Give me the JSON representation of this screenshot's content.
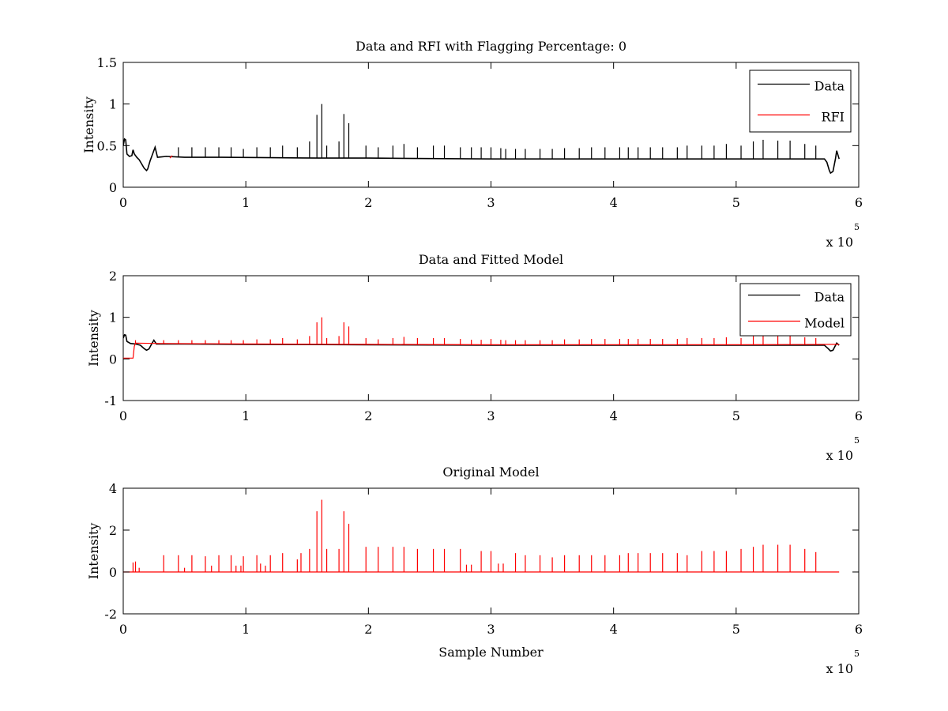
{
  "chart_data": [
    {
      "type": "line",
      "title": "Data and RFI with Flagging Percentage: 0",
      "xlabel": "",
      "ylabel": "Intensity",
      "xlim": [
        0,
        6
      ],
      "ylim": [
        0,
        1.5
      ],
      "xticks": [
        0,
        1,
        2,
        3,
        4,
        5,
        6
      ],
      "yticks": [
        0,
        0.5,
        1,
        1.5
      ],
      "x_multiplier_text": "x 10",
      "x_multiplier_exp": "5",
      "grid": false,
      "legend": {
        "placement": "top-right",
        "entries": [
          "Data",
          "RFI"
        ]
      },
      "series": [
        {
          "name": "Data",
          "color": "#000000",
          "values": [
            [
              0.0,
              0.5
            ],
            [
              0.01,
              0.58
            ],
            [
              0.02,
              0.57
            ],
            [
              0.03,
              0.4
            ],
            [
              0.05,
              0.37
            ],
            [
              0.07,
              0.38
            ],
            [
              0.08,
              0.45
            ],
            [
              0.09,
              0.4
            ],
            [
              0.11,
              0.36
            ],
            [
              0.13,
              0.33
            ],
            [
              0.15,
              0.28
            ],
            [
              0.17,
              0.23
            ],
            [
              0.19,
              0.2
            ],
            [
              0.2,
              0.22
            ],
            [
              0.22,
              0.32
            ],
            [
              0.24,
              0.4
            ],
            [
              0.26,
              0.48
            ],
            [
              0.28,
              0.36
            ],
            [
              0.35,
              0.37
            ],
            [
              0.5,
              0.36
            ],
            [
              0.8,
              0.36
            ],
            [
              1.2,
              0.355
            ],
            [
              1.6,
              0.35
            ],
            [
              2.0,
              0.35
            ],
            [
              2.5,
              0.345
            ],
            [
              3.0,
              0.34
            ],
            [
              3.5,
              0.34
            ],
            [
              4.0,
              0.34
            ],
            [
              4.5,
              0.34
            ],
            [
              5.0,
              0.34
            ],
            [
              5.5,
              0.34
            ],
            [
              5.72,
              0.34
            ],
            [
              5.74,
              0.3
            ],
            [
              5.76,
              0.2
            ],
            [
              5.77,
              0.17
            ],
            [
              5.79,
              0.19
            ],
            [
              5.81,
              0.34
            ],
            [
              5.82,
              0.44
            ],
            [
              5.84,
              0.34
            ]
          ],
          "spikes": [
            [
              0.26,
              0.48
            ],
            [
              0.45,
              0.48
            ],
            [
              0.56,
              0.48
            ],
            [
              0.67,
              0.48
            ],
            [
              0.78,
              0.48
            ],
            [
              0.88,
              0.48
            ],
            [
              0.98,
              0.46
            ],
            [
              1.09,
              0.48
            ],
            [
              1.2,
              0.48
            ],
            [
              1.3,
              0.5
            ],
            [
              1.42,
              0.48
            ],
            [
              1.52,
              0.55
            ],
            [
              1.58,
              0.87
            ],
            [
              1.62,
              1.0
            ],
            [
              1.66,
              0.5
            ],
            [
              1.76,
              0.55
            ],
            [
              1.8,
              0.88
            ],
            [
              1.84,
              0.77
            ],
            [
              1.98,
              0.5
            ],
            [
              2.08,
              0.48
            ],
            [
              2.2,
              0.5
            ],
            [
              2.29,
              0.52
            ],
            [
              2.4,
              0.48
            ],
            [
              2.53,
              0.5
            ],
            [
              2.62,
              0.5
            ],
            [
              2.75,
              0.48
            ],
            [
              2.84,
              0.48
            ],
            [
              2.92,
              0.48
            ],
            [
              3.0,
              0.48
            ],
            [
              3.08,
              0.47
            ],
            [
              3.12,
              0.46
            ],
            [
              3.2,
              0.46
            ],
            [
              3.28,
              0.46
            ],
            [
              3.4,
              0.46
            ],
            [
              3.5,
              0.46
            ],
            [
              3.6,
              0.47
            ],
            [
              3.72,
              0.47
            ],
            [
              3.82,
              0.48
            ],
            [
              3.93,
              0.48
            ],
            [
              4.05,
              0.48
            ],
            [
              4.12,
              0.48
            ],
            [
              4.2,
              0.48
            ],
            [
              4.3,
              0.48
            ],
            [
              4.4,
              0.48
            ],
            [
              4.52,
              0.48
            ],
            [
              4.6,
              0.5
            ],
            [
              4.72,
              0.5
            ],
            [
              4.82,
              0.5
            ],
            [
              4.92,
              0.52
            ],
            [
              5.04,
              0.5
            ],
            [
              5.14,
              0.55
            ],
            [
              5.22,
              0.57
            ],
            [
              5.34,
              0.56
            ],
            [
              5.44,
              0.56
            ],
            [
              5.56,
              0.52
            ],
            [
              5.65,
              0.5
            ]
          ]
        },
        {
          "name": "RFI",
          "color": "#ff0000",
          "values": [
            [
              0.38,
              0.35
            ],
            [
              0.4,
              0.38
            ]
          ]
        }
      ]
    },
    {
      "type": "line",
      "title": "Data and Fitted Model",
      "xlabel": "",
      "ylabel": "Intensity",
      "xlim": [
        0,
        6
      ],
      "ylim": [
        -1,
        2
      ],
      "xticks": [
        0,
        1,
        2,
        3,
        4,
        5,
        6
      ],
      "yticks": [
        -1,
        0,
        1,
        2
      ],
      "x_multiplier_text": "x 10",
      "x_multiplier_exp": "5",
      "grid": false,
      "legend": {
        "placement": "top-right",
        "entries": [
          "Data",
          "Model"
        ]
      },
      "series": [
        {
          "name": "Data",
          "color": "#000000",
          "values": [
            [
              0.0,
              0.5
            ],
            [
              0.01,
              0.58
            ],
            [
              0.02,
              0.57
            ],
            [
              0.03,
              0.42
            ],
            [
              0.06,
              0.37
            ],
            [
              0.1,
              0.36
            ],
            [
              0.14,
              0.33
            ],
            [
              0.17,
              0.25
            ],
            [
              0.19,
              0.21
            ],
            [
              0.21,
              0.24
            ],
            [
              0.23,
              0.35
            ],
            [
              0.25,
              0.45
            ],
            [
              0.27,
              0.36
            ],
            [
              0.5,
              0.36
            ],
            [
              1.0,
              0.35
            ],
            [
              2.0,
              0.34
            ],
            [
              3.0,
              0.33
            ],
            [
              4.0,
              0.33
            ],
            [
              5.0,
              0.33
            ],
            [
              5.72,
              0.33
            ],
            [
              5.75,
              0.25
            ],
            [
              5.77,
              0.19
            ],
            [
              5.79,
              0.21
            ],
            [
              5.82,
              0.38
            ],
            [
              5.84,
              0.33
            ]
          ]
        },
        {
          "name": "Model",
          "color": "#ff0000",
          "values": [
            [
              0.0,
              0.02
            ],
            [
              0.08,
              0.02
            ],
            [
              0.09,
              0.3
            ],
            [
              0.1,
              0.38
            ],
            [
              0.3,
              0.37
            ],
            [
              1.0,
              0.36
            ],
            [
              2.0,
              0.35
            ],
            [
              3.0,
              0.34
            ],
            [
              4.0,
              0.34
            ],
            [
              5.0,
              0.34
            ],
            [
              5.84,
              0.35
            ]
          ],
          "spikes": [
            [
              0.1,
              0.45
            ],
            [
              0.33,
              0.45
            ],
            [
              0.45,
              0.45
            ],
            [
              0.56,
              0.45
            ],
            [
              0.67,
              0.45
            ],
            [
              0.78,
              0.45
            ],
            [
              0.88,
              0.45
            ],
            [
              0.98,
              0.45
            ],
            [
              1.09,
              0.47
            ],
            [
              1.2,
              0.47
            ],
            [
              1.3,
              0.5
            ],
            [
              1.42,
              0.47
            ],
            [
              1.52,
              0.55
            ],
            [
              1.58,
              0.88
            ],
            [
              1.62,
              1.0
            ],
            [
              1.66,
              0.5
            ],
            [
              1.76,
              0.55
            ],
            [
              1.8,
              0.88
            ],
            [
              1.84,
              0.78
            ],
            [
              1.98,
              0.5
            ],
            [
              2.08,
              0.47
            ],
            [
              2.2,
              0.5
            ],
            [
              2.29,
              0.53
            ],
            [
              2.4,
              0.5
            ],
            [
              2.53,
              0.5
            ],
            [
              2.62,
              0.5
            ],
            [
              2.75,
              0.48
            ],
            [
              2.84,
              0.46
            ],
            [
              2.92,
              0.46
            ],
            [
              3.0,
              0.48
            ],
            [
              3.08,
              0.46
            ],
            [
              3.12,
              0.45
            ],
            [
              3.2,
              0.45
            ],
            [
              3.28,
              0.45
            ],
            [
              3.4,
              0.45
            ],
            [
              3.5,
              0.45
            ],
            [
              3.6,
              0.47
            ],
            [
              3.72,
              0.47
            ],
            [
              3.82,
              0.48
            ],
            [
              3.93,
              0.48
            ],
            [
              4.05,
              0.48
            ],
            [
              4.12,
              0.48
            ],
            [
              4.2,
              0.48
            ],
            [
              4.3,
              0.48
            ],
            [
              4.4,
              0.48
            ],
            [
              4.52,
              0.48
            ],
            [
              4.6,
              0.5
            ],
            [
              4.72,
              0.5
            ],
            [
              4.82,
              0.5
            ],
            [
              4.92,
              0.52
            ],
            [
              5.04,
              0.5
            ],
            [
              5.14,
              0.55
            ],
            [
              5.22,
              0.57
            ],
            [
              5.34,
              0.56
            ],
            [
              5.44,
              0.56
            ],
            [
              5.56,
              0.52
            ],
            [
              5.65,
              0.5
            ]
          ]
        }
      ]
    },
    {
      "type": "line",
      "title": "Original Model",
      "xlabel": "Sample Number",
      "ylabel": "Intensity",
      "xlim": [
        0,
        6
      ],
      "ylim": [
        -2,
        4
      ],
      "xticks": [
        0,
        1,
        2,
        3,
        4,
        5,
        6
      ],
      "yticks": [
        -2,
        0,
        2,
        4
      ],
      "x_multiplier_text": "x 10",
      "x_multiplier_exp": "5",
      "grid": false,
      "legend": null,
      "series": [
        {
          "name": "",
          "color": "#ff0000",
          "values": [
            [
              0.0,
              0.0
            ],
            [
              5.84,
              0.0
            ]
          ],
          "spikes": [
            [
              0.08,
              0.45
            ],
            [
              0.1,
              0.5
            ],
            [
              0.13,
              0.2
            ],
            [
              0.33,
              0.8
            ],
            [
              0.45,
              0.8
            ],
            [
              0.5,
              0.2
            ],
            [
              0.56,
              0.8
            ],
            [
              0.67,
              0.75
            ],
            [
              0.72,
              0.3
            ],
            [
              0.78,
              0.8
            ],
            [
              0.88,
              0.8
            ],
            [
              0.92,
              0.3
            ],
            [
              0.96,
              0.3
            ],
            [
              0.98,
              0.75
            ],
            [
              1.09,
              0.8
            ],
            [
              1.12,
              0.4
            ],
            [
              1.16,
              0.3
            ],
            [
              1.2,
              0.8
            ],
            [
              1.3,
              0.9
            ],
            [
              1.42,
              0.6
            ],
            [
              1.45,
              0.9
            ],
            [
              1.52,
              1.1
            ],
            [
              1.58,
              2.9
            ],
            [
              1.62,
              3.45
            ],
            [
              1.66,
              1.1
            ],
            [
              1.76,
              1.1
            ],
            [
              1.8,
              2.9
            ],
            [
              1.84,
              2.3
            ],
            [
              1.98,
              1.2
            ],
            [
              2.08,
              1.2
            ],
            [
              2.2,
              1.2
            ],
            [
              2.29,
              1.2
            ],
            [
              2.4,
              1.1
            ],
            [
              2.53,
              1.1
            ],
            [
              2.62,
              1.1
            ],
            [
              2.75,
              1.1
            ],
            [
              2.8,
              0.35
            ],
            [
              2.84,
              0.35
            ],
            [
              2.92,
              1.0
            ],
            [
              3.0,
              1.0
            ],
            [
              3.06,
              0.4
            ],
            [
              3.1,
              0.4
            ],
            [
              3.2,
              0.9
            ],
            [
              3.28,
              0.8
            ],
            [
              3.4,
              0.8
            ],
            [
              3.5,
              0.7
            ],
            [
              3.6,
              0.8
            ],
            [
              3.72,
              0.8
            ],
            [
              3.82,
              0.8
            ],
            [
              3.93,
              0.8
            ],
            [
              4.05,
              0.8
            ],
            [
              4.12,
              0.9
            ],
            [
              4.2,
              0.9
            ],
            [
              4.3,
              0.9
            ],
            [
              4.4,
              0.9
            ],
            [
              4.52,
              0.9
            ],
            [
              4.6,
              0.8
            ],
            [
              4.72,
              1.0
            ],
            [
              4.82,
              1.0
            ],
            [
              4.92,
              1.0
            ],
            [
              5.04,
              1.1
            ],
            [
              5.14,
              1.2
            ],
            [
              5.22,
              1.3
            ],
            [
              5.34,
              1.3
            ],
            [
              5.44,
              1.3
            ],
            [
              5.56,
              1.1
            ],
            [
              5.65,
              0.95
            ]
          ]
        }
      ]
    }
  ]
}
